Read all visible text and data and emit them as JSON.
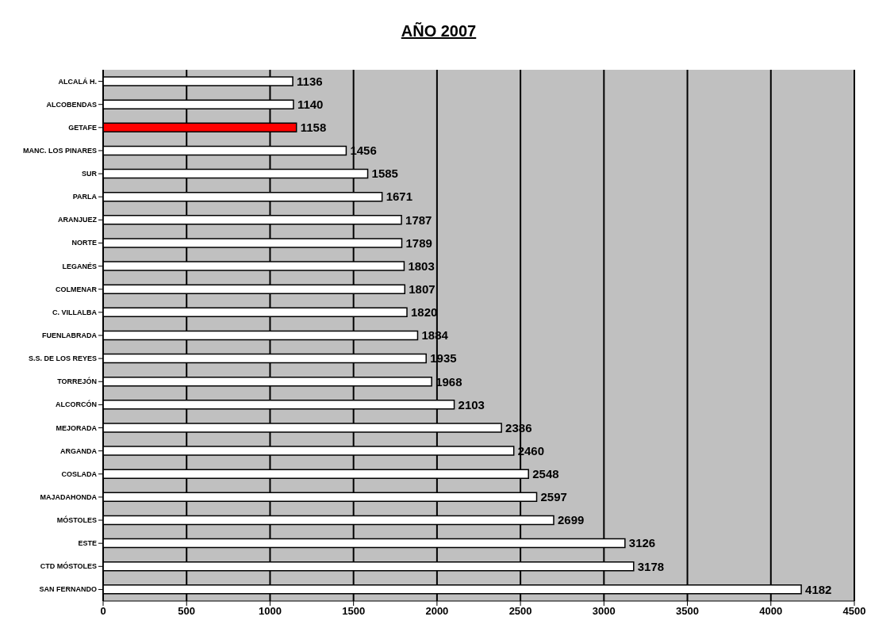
{
  "chart_data": {
    "type": "bar",
    "orientation": "horizontal",
    "title": "AÑO 2007",
    "categories": [
      "ALCALÁ H.",
      "ALCOBENDAS",
      "GETAFE",
      "MANC. LOS PINARES",
      "SUR",
      "PARLA",
      "ARANJUEZ",
      "NORTE",
      "LEGANÉS",
      "COLMENAR",
      "C. VILLALBA",
      "FUENLABRADA",
      "S.S. DE LOS REYES",
      "TORREJÓN",
      "ALCORCÓN",
      "MEJORADA",
      "ARGANDA",
      "COSLADA",
      "MAJADAHONDA",
      "MÓSTOLES",
      "ESTE",
      "CTD MÓSTOLES",
      "SAN FERNANDO"
    ],
    "values": [
      1136,
      1140,
      1158,
      1456,
      1585,
      1671,
      1787,
      1789,
      1803,
      1807,
      1820,
      1884,
      1935,
      1968,
      2103,
      2386,
      2460,
      2548,
      2597,
      2699,
      3126,
      3178,
      4182
    ],
    "colors": [
      "#ffffff",
      "#ffffff",
      "#ff0000",
      "#ffffff",
      "#ffffff",
      "#ffffff",
      "#ffffff",
      "#ffffff",
      "#ffffff",
      "#ffffff",
      "#ffffff",
      "#ffffff",
      "#ffffff",
      "#ffffff",
      "#ffffff",
      "#ffffff",
      "#ffffff",
      "#ffffff",
      "#ffffff",
      "#ffffff",
      "#ffffff",
      "#ffffff",
      "#ffffff"
    ],
    "xlim": [
      0,
      4500
    ],
    "xticks": [
      0,
      500,
      1000,
      1500,
      2000,
      2500,
      3000,
      3500,
      4000,
      4500
    ],
    "grid": "x",
    "data_labels": true
  }
}
